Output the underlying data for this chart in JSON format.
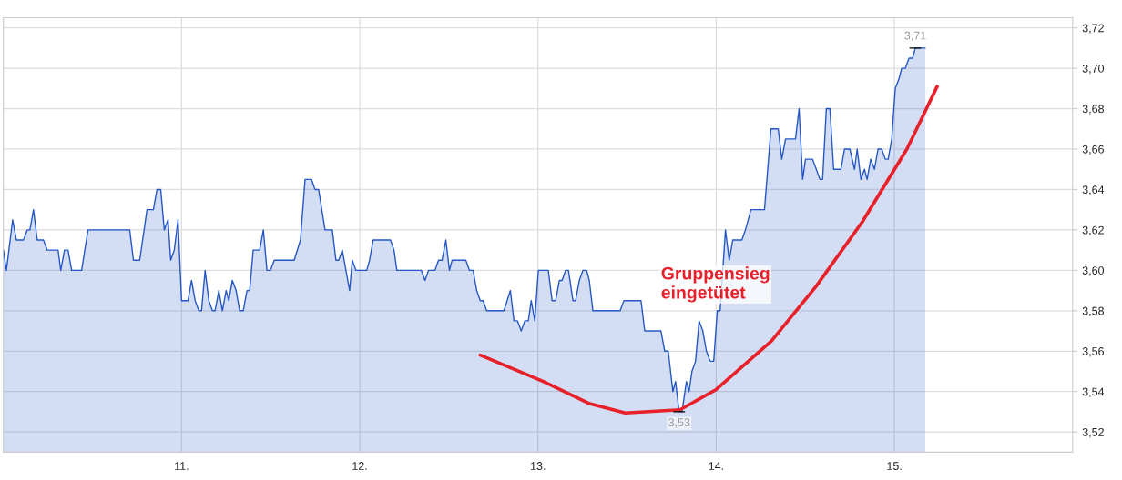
{
  "chart_data": {
    "type": "area",
    "xlim": [
      10,
      16
    ],
    "ylim": [
      3.51,
      3.725
    ],
    "xticks": [
      {
        "value": 11,
        "label": "11."
      },
      {
        "value": 12,
        "label": "12."
      },
      {
        "value": 13,
        "label": "13."
      },
      {
        "value": 14,
        "label": "14."
      },
      {
        "value": 15,
        "label": "15."
      }
    ],
    "yticks": [
      {
        "value": 3.52,
        "label": "3,52"
      },
      {
        "value": 3.54,
        "label": "3,54"
      },
      {
        "value": 3.56,
        "label": "3,56"
      },
      {
        "value": 3.58,
        "label": "3,58"
      },
      {
        "value": 3.6,
        "label": "3,60"
      },
      {
        "value": 3.62,
        "label": "3,62"
      },
      {
        "value": 3.64,
        "label": "3,64"
      },
      {
        "value": 3.66,
        "label": "3,66"
      },
      {
        "value": 3.68,
        "label": "3,68"
      },
      {
        "value": 3.7,
        "label": "3,70"
      },
      {
        "value": 3.72,
        "label": "3,72"
      }
    ],
    "grid": true,
    "legend": false,
    "line_style": "solid",
    "annotations": [
      "Gruppensieg\neingetütet",
      {
        "text": "3,53",
        "x": 13.792,
        "y": 3.53
      },
      {
        "text": "3,71",
        "x": 15.117,
        "y": 3.71
      }
    ],
    "series": [
      {
        "color": "#2457c5",
        "x": [
          10.0,
          10.017,
          10.052,
          10.073,
          10.113,
          10.134,
          10.149,
          10.169,
          10.19,
          10.225,
          10.246,
          10.307,
          10.322,
          10.343,
          10.363,
          10.383,
          10.439,
          10.475,
          10.709,
          10.73,
          10.765,
          10.806,
          10.842,
          10.862,
          10.883,
          10.903,
          10.924,
          10.939,
          10.959,
          10.98,
          11.0,
          11.036,
          11.056,
          11.076,
          11.097,
          11.112,
          11.132,
          11.153,
          11.173,
          11.188,
          11.209,
          11.229,
          11.25,
          11.265,
          11.285,
          11.306,
          11.326,
          11.346,
          11.367,
          11.382,
          11.402,
          11.438,
          11.459,
          11.479,
          11.499,
          11.52,
          11.632,
          11.667,
          11.693,
          11.729,
          11.749,
          11.769,
          11.805,
          11.846,
          11.866,
          11.882,
          11.902,
          11.943,
          11.958,
          11.978,
          12.039,
          12.055,
          12.075,
          12.172,
          12.192,
          12.208,
          12.345,
          12.366,
          12.386,
          12.422,
          12.442,
          12.462,
          12.483,
          12.503,
          12.518,
          12.595,
          12.615,
          12.636,
          12.656,
          12.676,
          12.692,
          12.712,
          12.809,
          12.845,
          12.865,
          12.885,
          12.906,
          12.926,
          12.946,
          12.962,
          12.982,
          13.002,
          13.058,
          13.079,
          13.099,
          13.12,
          13.135,
          13.155,
          13.171,
          13.196,
          13.211,
          13.232,
          13.252,
          13.273,
          13.288,
          13.308,
          13.461,
          13.482,
          13.578,
          13.599,
          13.69,
          13.711,
          13.731,
          13.757,
          13.772,
          13.792,
          13.808,
          13.833,
          13.848,
          13.864,
          13.884,
          13.904,
          13.925,
          13.945,
          13.966,
          13.986,
          14.006,
          14.022,
          14.052,
          14.073,
          14.093,
          14.144,
          14.164,
          14.195,
          14.271,
          14.307,
          14.348,
          14.368,
          14.389,
          14.445,
          14.465,
          14.485,
          14.501,
          14.541,
          14.582,
          14.597,
          14.618,
          14.638,
          14.659,
          14.7,
          14.72,
          14.75,
          14.776,
          14.791,
          14.812,
          14.832,
          14.847,
          14.867,
          14.888,
          14.908,
          14.929,
          14.949,
          14.965,
          14.985,
          15.005,
          15.026,
          15.041,
          15.061,
          15.082,
          15.102,
          15.117,
          15.173
        ],
        "values": [
          3.61,
          3.6,
          3.625,
          3.615,
          3.615,
          3.62,
          3.62,
          3.63,
          3.615,
          3.615,
          3.61,
          3.61,
          3.6,
          3.61,
          3.61,
          3.6,
          3.6,
          3.62,
          3.62,
          3.605,
          3.605,
          3.63,
          3.63,
          3.64,
          3.64,
          3.62,
          3.625,
          3.605,
          3.61,
          3.625,
          3.585,
          3.585,
          3.595,
          3.585,
          3.58,
          3.58,
          3.6,
          3.585,
          3.58,
          3.58,
          3.59,
          3.58,
          3.59,
          3.585,
          3.595,
          3.59,
          3.58,
          3.58,
          3.59,
          3.59,
          3.61,
          3.61,
          3.62,
          3.6,
          3.6,
          3.605,
          3.605,
          3.615,
          3.645,
          3.645,
          3.64,
          3.64,
          3.62,
          3.62,
          3.605,
          3.605,
          3.61,
          3.59,
          3.605,
          3.6,
          3.6,
          3.605,
          3.615,
          3.615,
          3.61,
          3.6,
          3.6,
          3.595,
          3.6,
          3.6,
          3.605,
          3.605,
          3.615,
          3.6,
          3.605,
          3.605,
          3.6,
          3.6,
          3.59,
          3.585,
          3.585,
          3.58,
          3.58,
          3.59,
          3.575,
          3.575,
          3.57,
          3.575,
          3.575,
          3.585,
          3.575,
          3.6,
          3.6,
          3.585,
          3.585,
          3.595,
          3.595,
          3.6,
          3.6,
          3.585,
          3.585,
          3.595,
          3.6,
          3.6,
          3.595,
          3.58,
          3.58,
          3.585,
          3.585,
          3.57,
          3.57,
          3.56,
          3.56,
          3.54,
          3.545,
          3.53,
          3.53,
          3.545,
          3.54,
          3.55,
          3.555,
          3.575,
          3.57,
          3.56,
          3.555,
          3.555,
          3.58,
          3.58,
          3.62,
          3.605,
          3.615,
          3.615,
          3.62,
          3.63,
          3.63,
          3.67,
          3.67,
          3.655,
          3.665,
          3.665,
          3.68,
          3.645,
          3.655,
          3.655,
          3.645,
          3.645,
          3.68,
          3.68,
          3.65,
          3.65,
          3.66,
          3.66,
          3.65,
          3.66,
          3.645,
          3.65,
          3.645,
          3.655,
          3.65,
          3.66,
          3.66,
          3.655,
          3.655,
          3.665,
          3.69,
          3.695,
          3.7,
          3.7,
          3.705,
          3.705,
          3.71,
          3.71
        ]
      },
      {
        "type": "line",
        "color": "#e8202a",
        "x": [
          12.676,
          13.03,
          13.29,
          13.49,
          13.797,
          14.0,
          14.31,
          14.56,
          14.82,
          15.07,
          15.24
        ],
        "values": [
          3.558,
          3.545,
          3.534,
          3.5294,
          3.531,
          3.541,
          3.565,
          3.592,
          3.624,
          3.66,
          3.691
        ]
      }
    ]
  }
}
